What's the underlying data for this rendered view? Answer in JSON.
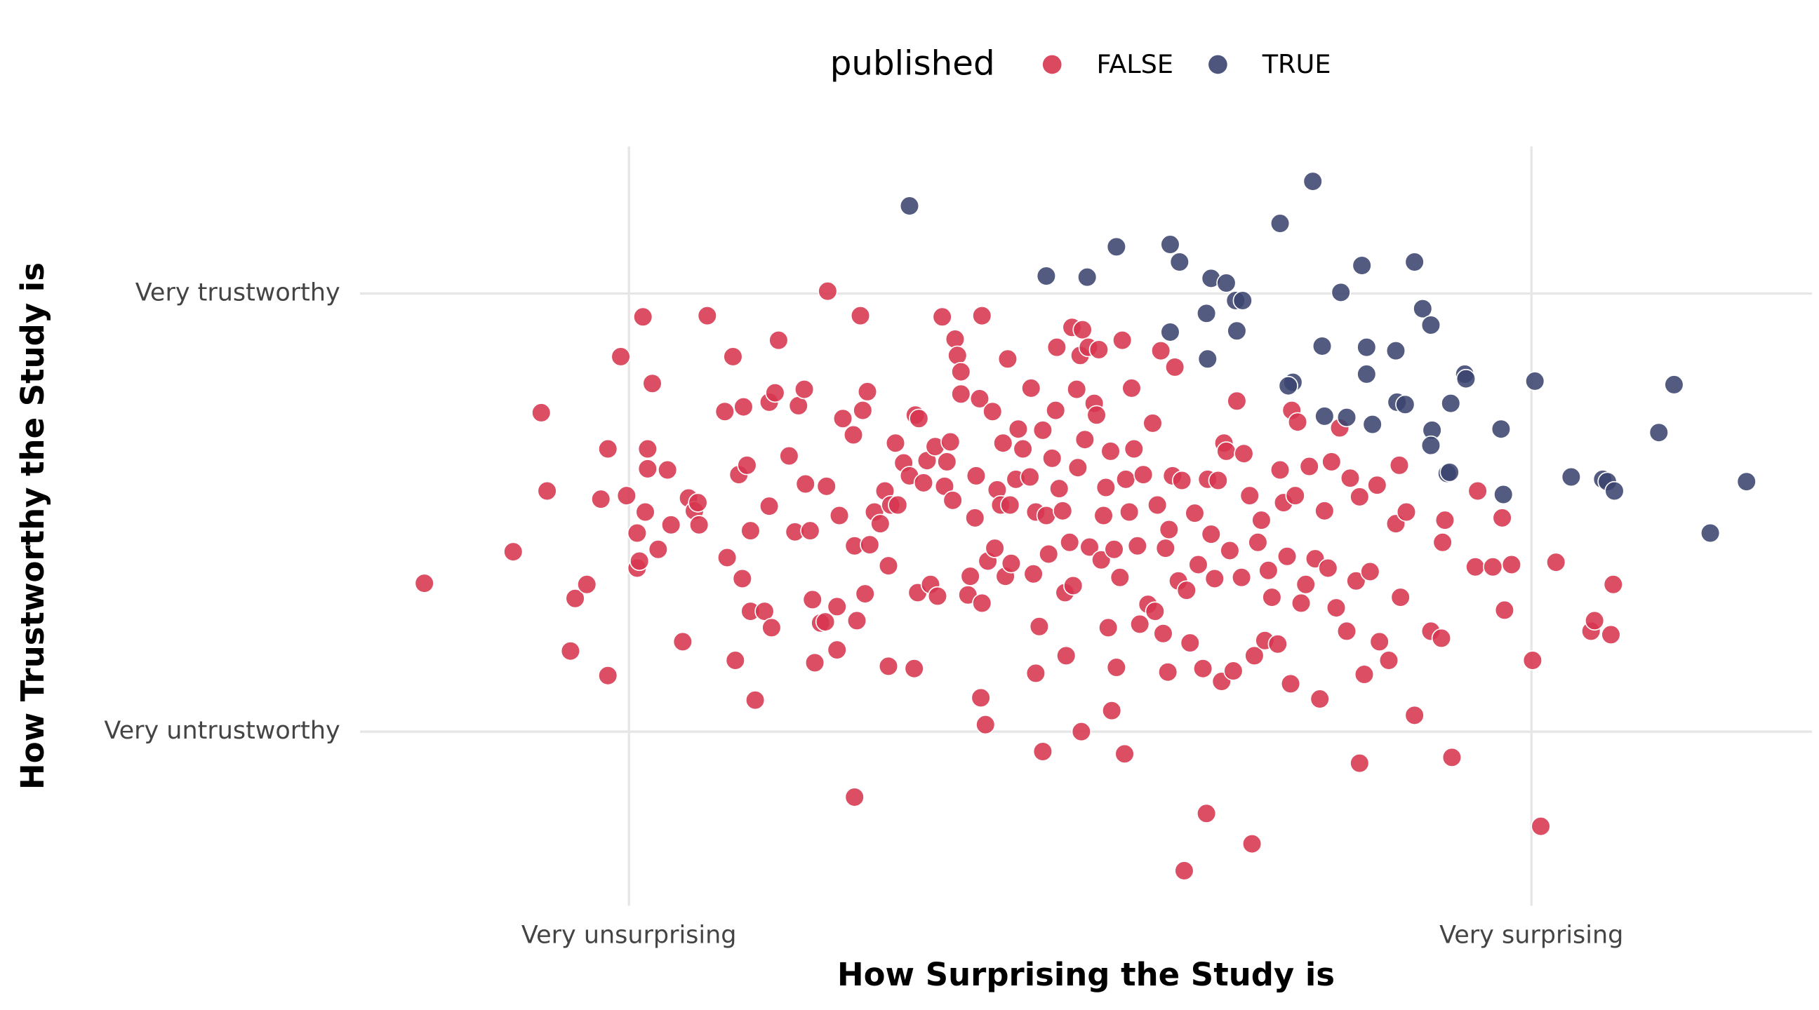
{
  "chart_data": {
    "type": "scatter",
    "xlabel": "How Surprising the Study is",
    "ylabel": "How Trustworthy the Study is",
    "legend_title": "published",
    "legend_position": "top",
    "grid": true,
    "xlim": [
      308,
      1550
    ],
    "ylim": [
      125,
      775
    ],
    "xticks": [
      {
        "value": 538,
        "label": "Very unsurprising"
      },
      {
        "value": 1310,
        "label": "Very surprising"
      }
    ],
    "yticks": [
      {
        "value": 274,
        "label": "Very untrustworthy"
      },
      {
        "value": 649,
        "label": "Very trustworthy"
      }
    ],
    "series": [
      {
        "name": "FALSE",
        "color": "#d7354f",
        "x": [
          363,
          439,
          463,
          468,
          488,
          492,
          502,
          514,
          520,
          520,
          531,
          536,
          545,
          545,
          547,
          550,
          552,
          554,
          554,
          558,
          563,
          571,
          574,
          584,
          589,
          594,
          597,
          598,
          605,
          620,
          622,
          627,
          629,
          632,
          635,
          636,
          639,
          642,
          642,
          646,
          654,
          658,
          658,
          660,
          663,
          666,
          675,
          680,
          683,
          688,
          689,
          693,
          695,
          697,
          702,
          706,
          707,
          708,
          716,
          716,
          718,
          721,
          730,
          731,
          731,
          733,
          736,
          738,
          740,
          742,
          744,
          748,
          753,
          757,
          760,
          760,
          762,
          766,
          768,
          773,
          778,
          782,
          783,
          785,
          786,
          790,
          793,
          796,
          800,
          802,
          806,
          808,
          810,
          813,
          815,
          817,
          819,
          822,
          822,
          828,
          830,
          834,
          835,
          838,
          839,
          840,
          840,
          843,
          845,
          849,
          851,
          853,
          856,
          858,
          860,
          862,
          864,
          865,
          869,
          871,
          875,
          881,
          882,
          884,
          886,
          886,
          889,
          892,
          892,
          895,
          897,
          900,
          903,
          904,
          906,
          909,
          911,
          912,
          915,
          917,
          918,
          921,
          922,
          924,
          925,
          926,
          928,
          931,
          932,
          936,
          938,
          940,
          942,
          944,
          946,
          948,
          950,
          951,
          953,
          955,
          958,
          960,
          962,
          963,
          966,
          968,
          970,
          973,
          975,
          978,
          982,
          986,
          988,
          990,
          993,
          995,
          997,
          999,
          1000,
          1003,
          1005,
          1008,
          1011,
          1013,
          1015,
          1018,
          1022,
          1025,
          1029,
          1032,
          1033,
          1036,
          1039,
          1042,
          1045,
          1047,
          1049,
          1052,
          1055,
          1058,
          1062,
          1064,
          1069,
          1071,
          1073,
          1076,
          1079,
          1082,
          1085,
          1088,
          1093,
          1095,
          1098,
          1101,
          1104,
          1105,
          1108,
          1110,
          1113,
          1117,
          1120,
          1125,
          1129,
          1133,
          1136,
          1139,
          1143,
          1146,
          1152,
          1155,
          1160,
          1163,
          1163,
          1167,
          1172,
          1178,
          1180,
          1188,
          1194,
          1197,
          1198,
          1203,
          1210,
          1224,
          1233,
          1236,
          1234,
          1242,
          1262,
          1264,
          1277,
          1285,
          1287,
          1293,
          1311,
          1318,
          1331,
          1361,
          1364,
          1378,
          1380
        ],
        "values": [
          401,
          428,
          547,
          480,
          343,
          388,
          400,
          473,
          516,
          322,
          595,
          476,
          444,
          414,
          420,
          629,
          462,
          516,
          499,
          572,
          430,
          498,
          451,
          351,
          474,
          463,
          470,
          451,
          630,
          548,
          423,
          595,
          335,
          494,
          405,
          552,
          502,
          446,
          377,
          301,
          377,
          556,
          467,
          363,
          564,
          609,
          510,
          445,
          553,
          567,
          486,
          446,
          387,
          333,
          367,
          368,
          484,
          651,
          381,
          344,
          459,
          542,
          528,
          218,
          433,
          369,
          630,
          549,
          392,
          565,
          434,
          462,
          452,
          480,
          416,
          330,
          468,
          521,
          468,
          504,
          493,
          328,
          545,
          393,
          542,
          487,
          506,
          400,
          518,
          390,
          629,
          484,
          505,
          522,
          472,
          610,
          596,
          582,
          563,
          391,
          407,
          457,
          493,
          559,
          303,
          630,
          384,
          280,
          420,
          548,
          431,
          481,
          468,
          521,
          407,
          593,
          468,
          418,
          490,
          533,
          516,
          492,
          568,
          409,
          462,
          324,
          364,
          257,
          532,
          459,
          426,
          508,
          549,
          603,
          482,
          463,
          393,
          339,
          436,
          620,
          399,
          567,
          500,
          596,
          274,
          618,
          524,
          603,
          432,
          555,
          545,
          601,
          421,
          459,
          483,
          363,
          514,
          292,
          430,
          329,
          406,
          609,
          255,
          490,
          462,
          568,
          516,
          433,
          366,
          494,
          383,
          538,
          377,
          468,
          600,
          358,
          431,
          325,
          447,
          493,
          586,
          403,
          489,
          155,
          395,
          350,
          461,
          417,
          328,
          204,
          490,
          443,
          405,
          489,
          317,
          521,
          514,
          429,
          326,
          557,
          406,
          512,
          476,
          178,
          339,
          436,
          455,
          352,
          412,
          389,
          349,
          498,
          470,
          424,
          315,
          549,
          476,
          539,
          384,
          400,
          501,
          422,
          302,
          463,
          414,
          505,
          380,
          534,
          360,
          491,
          403,
          475,
          247,
          323,
          411,
          485,
          351,
          335,
          452,
          502,
          389,
          462,
          288,
          360,
          354,
          455,
          436,
          252,
          415,
          480,
          415,
          457,
          378,
          417,
          335,
          193,
          419,
          360,
          369,
          357,
          400
        ]
      },
      {
        "name": "TRUE",
        "color": "#3b4470",
        "x": [
          778,
          895,
          930,
          955,
          1001,
          1009,
          1036,
          1049,
          1057,
          1032,
          1063,
          1001,
          1058,
          1033,
          1095,
          1123,
          1165,
          1210,
          1147,
          1217,
          1224,
          1131,
          1169,
          1194,
          1106,
          1102,
          1169,
          1253,
          1254,
          1313,
          1432,
          1133,
          1152,
          1174,
          1195,
          1202,
          1241,
          1225,
          1224,
          1238,
          1240,
          1284,
          1419,
          1344,
          1371,
          1375,
          1381,
          1286,
          1494,
          1463
        ],
        "values": [
          724,
          664,
          663,
          689,
          691,
          676,
          662,
          658,
          643,
          632,
          643,
          616,
          617,
          593,
          709,
          745,
          673,
          676,
          650,
          636,
          622,
          604,
          603,
          600,
          573,
          570,
          580,
          580,
          576,
          574,
          571,
          544,
          543,
          537,
          556,
          554,
          555,
          532,
          519,
          495,
          496,
          533,
          530,
          492,
          490,
          488,
          480,
          477,
          488,
          444
        ]
      }
    ]
  }
}
